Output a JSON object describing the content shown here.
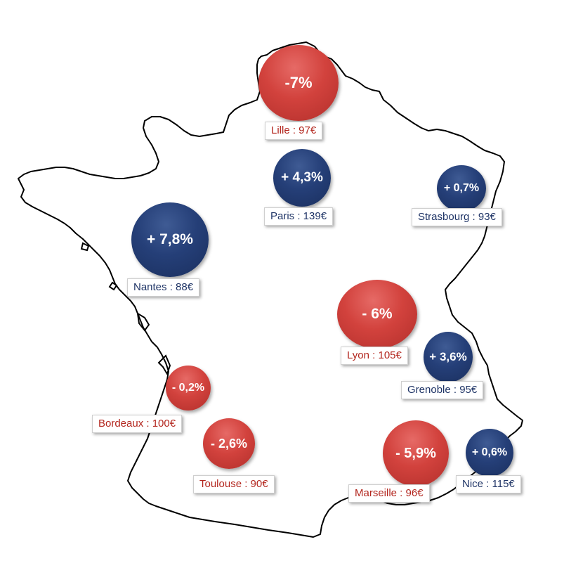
{
  "colors": {
    "decrease": "#d2423d",
    "increase": "#253f78",
    "decrease_text": "#b3261e",
    "increase_text": "#1f3466",
    "outline": "#000000"
  },
  "cities": [
    {
      "id": "lille",
      "change": "-7%",
      "label": "Lille : 97€",
      "trend": "decrease"
    },
    {
      "id": "paris",
      "change": "+ 4,3%",
      "label": "Paris : 139€",
      "trend": "increase"
    },
    {
      "id": "strasbourg",
      "change": "+ 0,7%",
      "label": "Strasbourg : 93€",
      "trend": "increase"
    },
    {
      "id": "nantes",
      "change": "+ 7,8%",
      "label": "Nantes : 88€",
      "trend": "increase"
    },
    {
      "id": "lyon",
      "change": "- 6%",
      "label": "Lyon : 105€",
      "trend": "decrease"
    },
    {
      "id": "grenoble",
      "change": "+ 3,6%",
      "label": "Grenoble : 95€",
      "trend": "increase"
    },
    {
      "id": "bordeaux",
      "change": "- 0,2%",
      "label": "Bordeaux : 100€",
      "trend": "decrease"
    },
    {
      "id": "toulouse",
      "change": "- 2,6%",
      "label": "Toulouse : 90€",
      "trend": "decrease"
    },
    {
      "id": "marseille",
      "change": "- 5,9%",
      "label": "Marseille : 96€",
      "trend": "decrease"
    },
    {
      "id": "nice",
      "change": "+ 0,6%",
      "label": "Nice : 115€",
      "trend": "increase"
    }
  ]
}
